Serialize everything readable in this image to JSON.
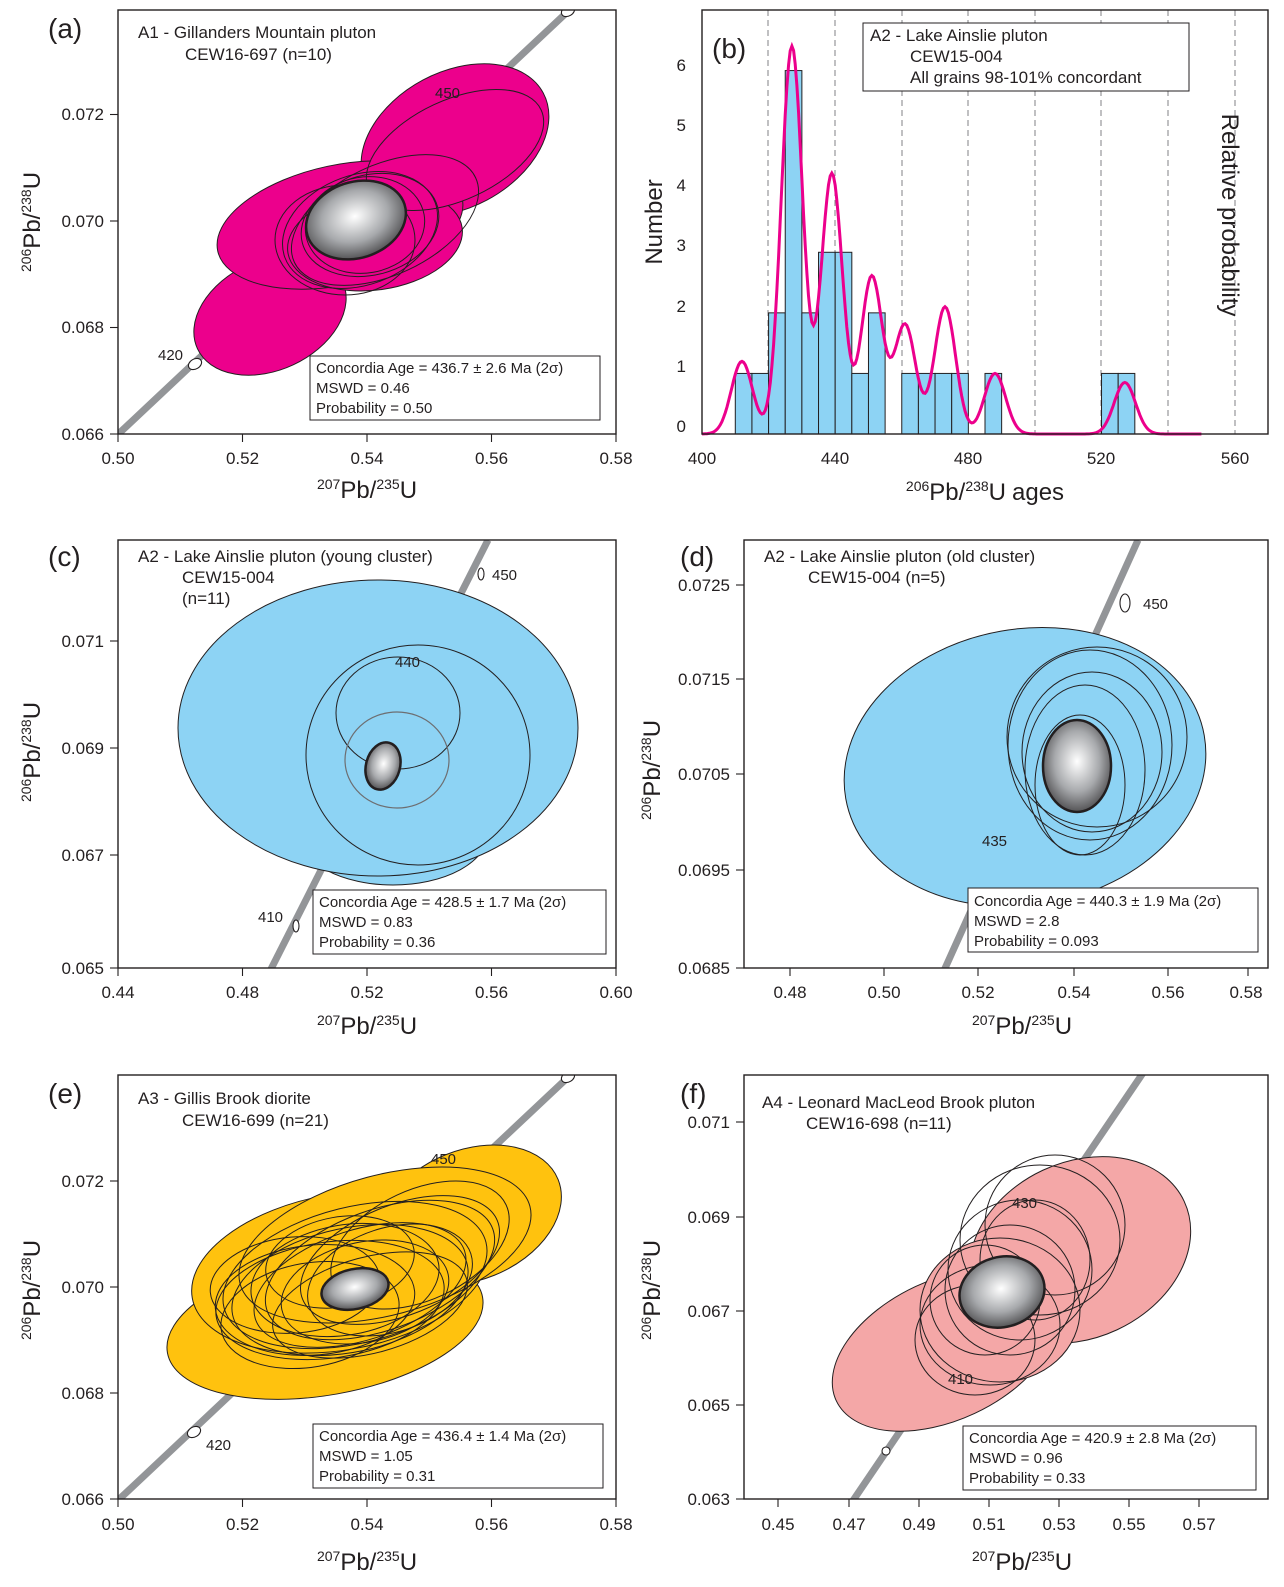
{
  "colors": {
    "a": "#ec008c",
    "b_bar": "#8dd3f4",
    "b_curve": "#ec008c",
    "c": "#8dd3f4",
    "d": "#8dd3f4",
    "e": "#ffc20e",
    "f": "#f4a7a7",
    "concordia": "#939598"
  },
  "panels": [
    {
      "id": "a",
      "label": "(a)",
      "type": "concordia",
      "title_lines": [
        "A1 - Gillanders Mountain pluton",
        "CEW16-697 (n=10)"
      ],
      "xlim": [
        0.5,
        0.58
      ],
      "ylim": [
        0.066,
        0.0733
      ],
      "xticks": [
        "0.50",
        "0.52",
        "0.54",
        "0.56",
        "0.58"
      ],
      "yticks": [
        "0.066",
        "0.068",
        "0.070",
        "0.072"
      ],
      "xlabel": {
        "pre": "207",
        "base": "Pb/",
        "sup2": "235",
        "end": "U"
      },
      "ylabel": {
        "pre": "206",
        "base": "Pb/",
        "sup2": "238",
        "end": "U"
      },
      "age_labels": [
        "420",
        "450"
      ],
      "stats": [
        "Concordia Age = 436.7 ± 2.6 Ma (2σ)",
        "MSWD = 0.46",
        "Probability = 0.50"
      ],
      "mean": {
        "x": 0.539,
        "y": 0.07
      }
    },
    {
      "id": "b",
      "label": "(b)",
      "type": "histogram",
      "title_lines": [
        "A2 - Lake Ainslie pluton",
        "CEW15-004",
        "All grains 98-101% concordant"
      ],
      "xlabel": "ages",
      "ylabel": "Number",
      "y2label": "Relative probability",
      "xticks": [
        "400",
        "440",
        "480",
        "520",
        "560"
      ],
      "yticks": [
        "0",
        "1",
        "2",
        "3",
        "4",
        "5",
        "6"
      ]
    },
    {
      "id": "c",
      "label": "(c)",
      "type": "concordia",
      "title_lines": [
        "A2 - Lake Ainslie pluton (young cluster)",
        "CEW15-004",
        "(n=11)"
      ],
      "xlim": [
        0.44,
        0.6
      ],
      "ylim": [
        0.065,
        0.0725
      ],
      "xticks": [
        "0.44",
        "0.48",
        "0.52",
        "0.56",
        "0.60"
      ],
      "yticks": [
        "0.065",
        "0.067",
        "0.069",
        "0.071"
      ],
      "xlabel": {
        "pre": "207",
        "base": "Pb/",
        "sup2": "235",
        "end": "U"
      },
      "ylabel": {
        "pre": "206",
        "base": "Pb/",
        "sup2": "238",
        "end": "U"
      },
      "age_labels": [
        "410",
        "440",
        "450"
      ],
      "stats": [
        "Concordia Age = 428.5 ± 1.7 Ma (2σ)",
        "MSWD = 0.83",
        "Probability = 0.36"
      ],
      "mean": {
        "x": 0.5255,
        "y": 0.0688
      }
    },
    {
      "id": "d",
      "label": "(d)",
      "type": "concordia",
      "title_lines": [
        "A2 - Lake Ainslie pluton (old cluster)",
        "CEW15-004 (n=5)"
      ],
      "xlim": [
        0.47,
        0.59
      ],
      "ylim": [
        0.0685,
        0.0729
      ],
      "xticks": [
        "0.48",
        "0.50",
        "0.52",
        "0.54",
        "0.56",
        "0.58"
      ],
      "yticks": [
        "0.0685",
        "0.0695",
        "0.0705",
        "0.0715",
        "0.0725"
      ],
      "xlabel": {
        "pre": "207",
        "base": "Pb/",
        "sup2": "235",
        "end": "U"
      },
      "ylabel": {
        "pre": "206",
        "base": "Pb/",
        "sup2": "238",
        "end": "U"
      },
      "age_labels": [
        "435",
        "450"
      ],
      "stats": [
        "Concordia Age = 440.3 ± 1.9 Ma (2σ)",
        "MSWD = 2.8",
        "Probability = 0.093"
      ],
      "mean": {
        "x": 0.5465,
        "y": 0.07055
      }
    },
    {
      "id": "e",
      "label": "(e)",
      "type": "concordia",
      "title_lines": [
        "A3 - Gillis Brook diorite",
        "CEW16-699 (n=21)"
      ],
      "xlim": [
        0.5,
        0.58
      ],
      "ylim": [
        0.066,
        0.0733
      ],
      "xticks": [
        "0.50",
        "0.52",
        "0.54",
        "0.56",
        "0.58"
      ],
      "yticks": [
        "0.066",
        "0.068",
        "0.070",
        "0.072"
      ],
      "xlabel": {
        "pre": "207",
        "base": "Pb/",
        "sup2": "235",
        "end": "U"
      },
      "ylabel": {
        "pre": "206",
        "base": "Pb/",
        "sup2": "238",
        "end": "U"
      },
      "age_labels": [
        "420",
        "450"
      ],
      "stats": [
        "Concordia Age = 436.4 ± 1.4 Ma (2σ)",
        "MSWD = 1.05",
        "Probability = 0.31"
      ],
      "mean": {
        "x": 0.539,
        "y": 0.07
      }
    },
    {
      "id": "f",
      "label": "(f)",
      "type": "concordia",
      "title_lines": [
        "A4 - Leonard MacLeod Brook pluton",
        "CEW16-698 (n=11)"
      ],
      "xlim": [
        0.44,
        0.59
      ],
      "ylim": [
        0.063,
        0.0718
      ],
      "xticks": [
        "0.45",
        "0.47",
        "0.49",
        "0.51",
        "0.53",
        "0.55",
        "0.57"
      ],
      "yticks": [
        "0.063",
        "0.065",
        "0.067",
        "0.069",
        "0.071"
      ],
      "xlabel": {
        "pre": "207",
        "base": "Pb/",
        "sup2": "235",
        "end": "U"
      },
      "ylabel": {
        "pre": "206",
        "base": "Pb/",
        "sup2": "238",
        "end": "U"
      },
      "age_labels": [
        "410",
        "430"
      ],
      "stats": [
        "Concordia Age = 420.9 ± 2.8 Ma (2σ)",
        "MSWD = 0.96",
        "Probability = 0.33"
      ],
      "mean": {
        "x": 0.5155,
        "y": 0.0674
      }
    }
  ],
  "chart_data": [
    {
      "type": "scatter",
      "panel": "a",
      "title": "A1 - Gillanders Mountain pluton",
      "concordia_age_ma": 436.7,
      "age_err_ma": 2.6,
      "mswd": 0.46,
      "probability": 0.5,
      "n": 10,
      "mean_x": 0.539,
      "mean_y": 0.07,
      "xlim": [
        0.5,
        0.58
      ],
      "ylim": [
        0.066,
        0.0733
      ]
    },
    {
      "type": "bar",
      "panel": "b",
      "title": "A2 - Lake Ainslie pluton",
      "bin_width": 5,
      "bin_starts": [
        410,
        415,
        420,
        425,
        430,
        435,
        440,
        445,
        450,
        455,
        460,
        465,
        470,
        475,
        485,
        520,
        525
      ],
      "values": [
        1,
        1,
        2,
        6,
        2,
        3,
        3,
        1,
        2,
        0,
        1,
        1,
        1,
        1,
        1,
        1,
        1
      ],
      "xlim": [
        400,
        570
      ],
      "ylim": [
        0,
        7
      ],
      "probability_peaks": [
        {
          "x": 412,
          "h": 1.2
        },
        {
          "x": 427,
          "h": 6.4
        },
        {
          "x": 439,
          "h": 4.3
        },
        {
          "x": 451,
          "h": 2.6
        },
        {
          "x": 461,
          "h": 1.8
        },
        {
          "x": 473,
          "h": 2.1
        },
        {
          "x": 488,
          "h": 1.0
        },
        {
          "x": 527,
          "h": 0.85
        }
      ]
    },
    {
      "type": "scatter",
      "panel": "c",
      "title": "A2 - Lake Ainslie pluton (young cluster)",
      "concordia_age_ma": 428.5,
      "age_err_ma": 1.7,
      "mswd": 0.83,
      "probability": 0.36,
      "n": 11,
      "mean_x": 0.5255,
      "mean_y": 0.0688,
      "xlim": [
        0.44,
        0.6
      ],
      "ylim": [
        0.065,
        0.0725
      ]
    },
    {
      "type": "scatter",
      "panel": "d",
      "title": "A2 - Lake Ainslie pluton (old cluster)",
      "concordia_age_ma": 440.3,
      "age_err_ma": 1.9,
      "mswd": 2.8,
      "probability": 0.093,
      "n": 5,
      "mean_x": 0.5465,
      "mean_y": 0.07055,
      "xlim": [
        0.47,
        0.59
      ],
      "ylim": [
        0.0685,
        0.0729
      ]
    },
    {
      "type": "scatter",
      "panel": "e",
      "title": "A3 - Gillis Brook diorite",
      "concordia_age_ma": 436.4,
      "age_err_ma": 1.4,
      "mswd": 1.05,
      "probability": 0.31,
      "n": 21,
      "mean_x": 0.539,
      "mean_y": 0.07,
      "xlim": [
        0.5,
        0.58
      ],
      "ylim": [
        0.066,
        0.0733
      ]
    },
    {
      "type": "scatter",
      "panel": "f",
      "title": "A4 - Leonard MacLeod Brook pluton",
      "concordia_age_ma": 420.9,
      "age_err_ma": 2.8,
      "mswd": 0.96,
      "probability": 0.33,
      "n": 11,
      "mean_x": 0.5155,
      "mean_y": 0.0674,
      "xlim": [
        0.44,
        0.59
      ],
      "ylim": [
        0.063,
        0.0718
      ]
    }
  ]
}
